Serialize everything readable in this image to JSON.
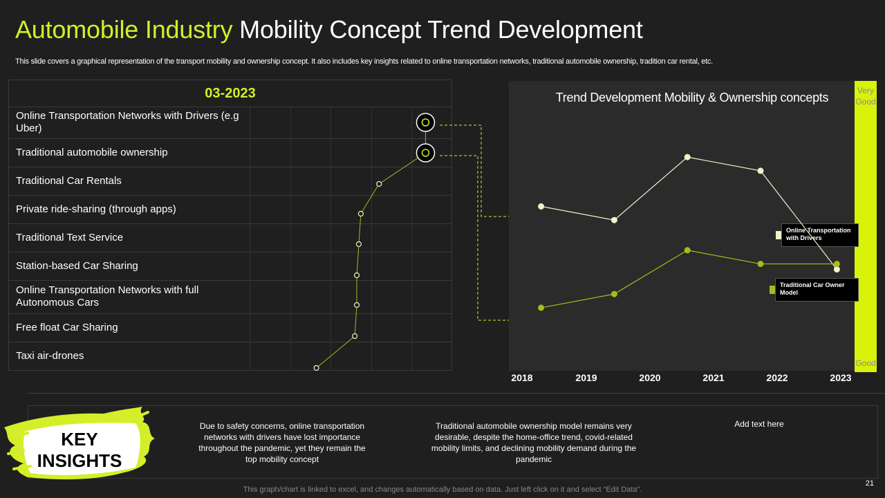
{
  "title": {
    "accent": "Automobile Industry",
    "rest": " Mobility Concept Trend Development"
  },
  "subtitle": "This slide covers a graphical representation of the transport mobility and ownership concept. It also includes key insights related to online transportation networks, traditional automobile ownership, tradition car rental, etc.",
  "ranking": {
    "header": "03-2023",
    "rows": [
      "Online Transportation Networks with Drivers (e.g Uber)",
      "Traditional automobile ownership",
      "Traditional Car Rentals",
      "Private ride-sharing (through apps)",
      "Traditional Text Service",
      "Station-based Car Sharing",
      "Online Transportation Networks with full Autonomous Cars",
      "Free float Car Sharing",
      "Taxi air-drones"
    ],
    "scores": [
      4.35,
      4.35,
      3.2,
      2.75,
      2.7,
      2.65,
      2.65,
      2.6,
      1.65
    ],
    "highlighted_rows": [
      0,
      1
    ]
  },
  "chart_data": {
    "type": "line",
    "title": "Trend Development Mobility & Ownership concepts",
    "categories": [
      "2018",
      "2019",
      "2020",
      "2021",
      "2022",
      "2023"
    ],
    "series": [
      {
        "name": "Online Transportation with Drivers",
        "color": "#f2f2c8",
        "values": [
          0.6,
          0.55,
          0.78,
          0.73,
          null,
          0.37
        ]
      },
      {
        "name": "Traditional Car Owner Model",
        "color": "#a9ba1c",
        "values": [
          0.23,
          0.28,
          0.44,
          0.39,
          null,
          0.39
        ]
      }
    ],
    "x_points": [
      0.3,
      1.45,
      2.6,
      3.75,
      null,
      4.95
    ],
    "scale": {
      "top": "Very Good",
      "bottom": "Good"
    },
    "ylim": [
      0,
      1
    ]
  },
  "legend": {
    "series1": "Online Transportation with Drivers",
    "series2": "Traditional Car Owner Model"
  },
  "colors": {
    "accent": "#d4ee29",
    "scale_bar": "#d8f20a",
    "line_light": "#f2f2c8",
    "line_olive": "#a9ba1c"
  },
  "insights": {
    "label": "KEY INSIGHTS",
    "items": [
      "Due to safety concerns, online transportation networks with drivers have lost importance throughout the pandemic, yet they remain the top mobility concept",
      "Traditional automobile ownership model remains very desirable, despite the home-office trend, covid-related mobility limits, and declining mobility demand during the pandemic",
      "Add text here"
    ]
  },
  "page_number": "21",
  "footnote": "This graph/chart is linked to excel, and changes automatically based on data. Just left click on it and select “Edit Data”."
}
